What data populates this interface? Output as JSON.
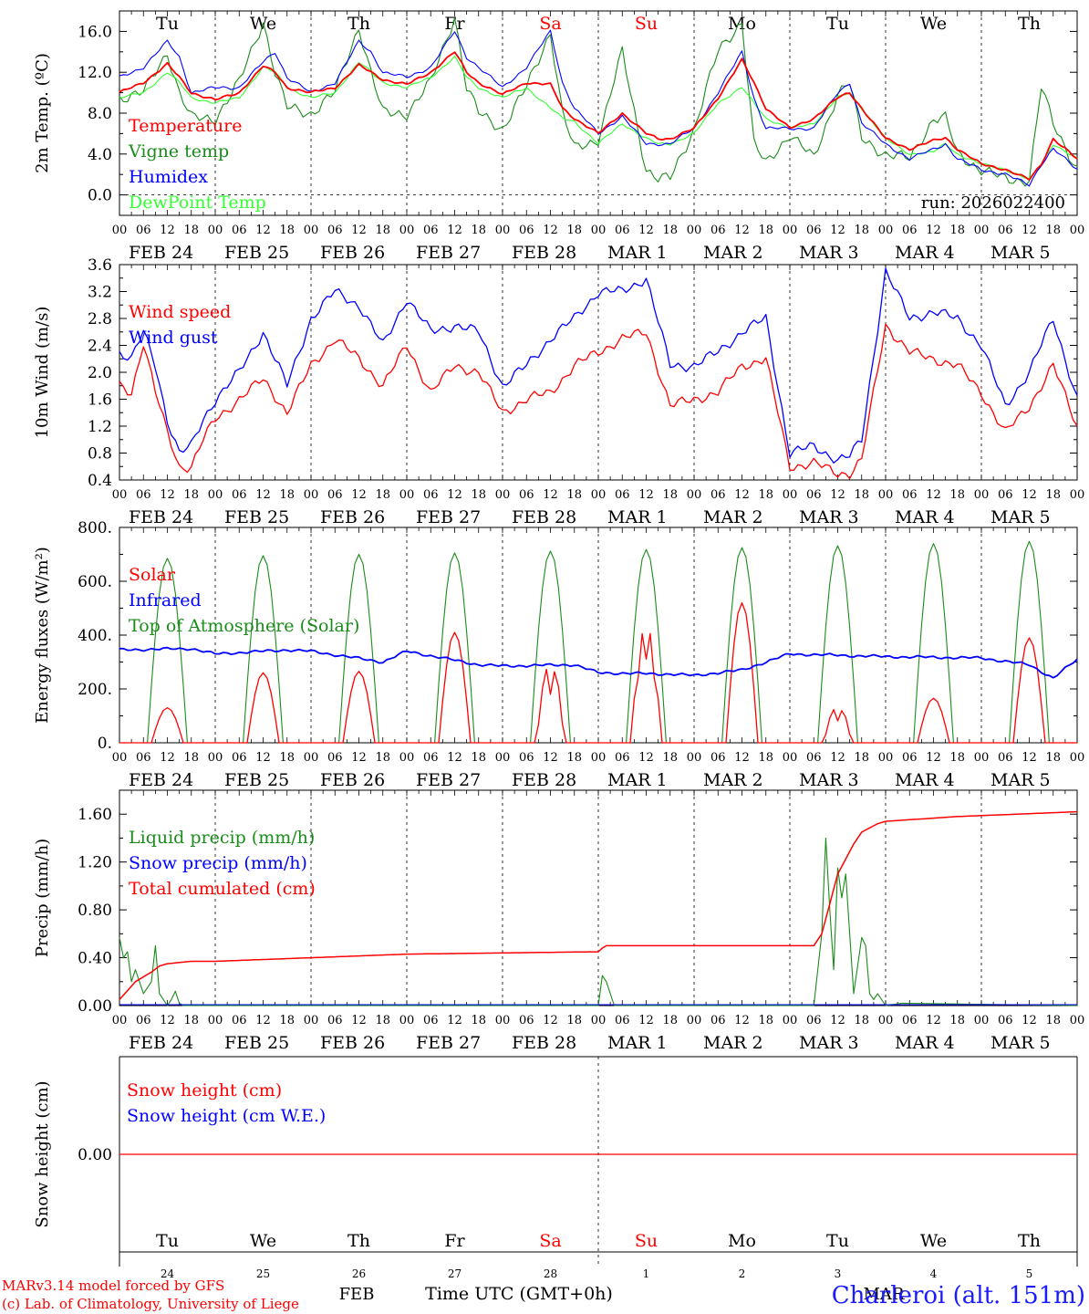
{
  "chart_data": [
    {
      "type": "line",
      "ylabel": "2m Temp. (ºC)",
      "ylim": [
        -2.0,
        18.0
      ],
      "ytick_labels": [
        "0.0",
        "4.0",
        "8.0",
        "12.0",
        "16.0"
      ],
      "run_label": "run: 2026022400",
      "day_labels": [
        "Tu",
        "We",
        "Th",
        "Fr",
        "Sa",
        "Su",
        "Mo",
        "Tu",
        "We",
        "Th"
      ],
      "date_labels": [
        "FEB 24",
        "FEB 25",
        "FEB 26",
        "FEB 27",
        "FEB 28",
        "MAR  1",
        "MAR  2",
        "MAR  3",
        "MAR  4",
        "MAR  5"
      ],
      "x_hours": [
        0,
        6,
        12,
        15,
        18,
        24,
        30,
        36,
        39,
        42,
        48,
        54,
        60,
        63,
        66,
        72,
        78,
        84,
        87,
        90,
        96,
        102,
        108,
        111,
        114,
        120,
        126,
        132,
        135,
        138,
        144,
        150,
        156,
        159,
        162,
        168,
        174,
        180,
        183,
        186,
        192,
        198,
        204,
        207,
        210,
        216,
        222,
        228,
        231,
        234,
        240
      ],
      "series": [
        {
          "name": "Temperature",
          "color": "#ff0000",
          "values": [
            10.0,
            11.0,
            12.8,
            11.5,
            10.0,
            9.3,
            10.0,
            12.6,
            12.0,
            10.5,
            10.0,
            10.5,
            12.7,
            12.0,
            11.3,
            10.8,
            12.0,
            14.0,
            12.0,
            11.0,
            9.8,
            11.0,
            10.8,
            8.5,
            7.5,
            6.0,
            8.0,
            6.0,
            5.5,
            5.5,
            6.5,
            9.5,
            13.2,
            11.0,
            8.5,
            6.5,
            7.5,
            9.5,
            10.0,
            8.5,
            5.5,
            4.5,
            5.3,
            5.6,
            4.5,
            3.0,
            2.5,
            1.5,
            3.0,
            5.5,
            3.5
          ]
        },
        {
          "name": "Vigne temp",
          "color": "#1a8c1a",
          "values": [
            9.5,
            10.0,
            14.0,
            10.0,
            7.5,
            7.5,
            11.0,
            17.0,
            12.0,
            8.5,
            8.0,
            10.0,
            16.5,
            12.0,
            8.0,
            8.0,
            11.0,
            17.5,
            10.5,
            8.0,
            6.5,
            10.5,
            16.0,
            8.0,
            4.5,
            5.5,
            14.0,
            2.5,
            1.5,
            1.6,
            6.5,
            14.0,
            17.0,
            5.0,
            3.0,
            6.0,
            3.5,
            10.0,
            11.0,
            5.5,
            4.0,
            3.5,
            7.5,
            7.5,
            4.0,
            2.5,
            1.5,
            1.5,
            10.5,
            7.0,
            2.5
          ]
        },
        {
          "name": "Humidex",
          "color": "#0000ff",
          "values": [
            11.5,
            12.5,
            15.0,
            13.5,
            10.0,
            10.5,
            10.5,
            13.0,
            14.0,
            11.5,
            10.0,
            11.0,
            15.0,
            14.0,
            12.0,
            11.5,
            12.5,
            16.0,
            13.5,
            12.5,
            10.5,
            12.5,
            16.0,
            11.0,
            8.5,
            6.0,
            7.7,
            5.0,
            5.0,
            5.0,
            6.5,
            10.0,
            14.0,
            9.5,
            6.5,
            6.5,
            6.5,
            10.0,
            11.0,
            7.0,
            5.0,
            3.5,
            4.5,
            5.0,
            3.5,
            2.5,
            2.0,
            1.0,
            3.0,
            4.5,
            2.5
          ]
        },
        {
          "name": "DewPoint Temp",
          "color": "#33ff33",
          "values": [
            9.5,
            10.0,
            12.0,
            11.0,
            9.5,
            9.0,
            9.5,
            12.5,
            12.0,
            10.5,
            9.5,
            10.0,
            13.0,
            12.0,
            11.0,
            10.5,
            11.5,
            13.5,
            11.5,
            10.5,
            9.5,
            10.5,
            8.5,
            7.5,
            7.2,
            5.0,
            7.0,
            5.5,
            5.0,
            5.0,
            6.0,
            9.0,
            10.5,
            9.0,
            7.5,
            6.5,
            7.0,
            9.5,
            10.0,
            8.5,
            5.5,
            4.0,
            4.2,
            5.0,
            4.0,
            3.0,
            2.5,
            1.5,
            3.0,
            5.0,
            3.5
          ]
        }
      ]
    },
    {
      "type": "line",
      "ylabel": "10m Wind (m/s)",
      "ylim": [
        0.4,
        3.6
      ],
      "ytick_labels": [
        "0.4",
        "0.8",
        "1.2",
        "1.6",
        "2.0",
        "2.4",
        "2.8",
        "3.2",
        "3.6"
      ],
      "date_labels": [
        "FEB 24",
        "FEB 25",
        "FEB 26",
        "FEB 27",
        "FEB 28",
        "MAR  1",
        "MAR  2",
        "MAR  3",
        "MAR  4",
        "MAR  5"
      ],
      "x_hours": [
        0,
        3,
        6,
        9,
        12,
        15,
        18,
        21,
        24,
        30,
        36,
        42,
        48,
        54,
        60,
        66,
        72,
        78,
        84,
        90,
        96,
        102,
        108,
        114,
        120,
        126,
        132,
        138,
        144,
        150,
        156,
        162,
        168,
        174,
        180,
        183,
        186,
        192,
        198,
        204,
        210,
        216,
        222,
        228,
        234,
        240
      ],
      "series": [
        {
          "name": "Wind speed",
          "color": "#ff0000",
          "values": [
            1.8,
            1.7,
            2.45,
            1.7,
            1.1,
            0.6,
            0.6,
            1.0,
            1.3,
            1.6,
            1.9,
            1.4,
            2.1,
            2.5,
            2.2,
            1.8,
            2.4,
            1.7,
            2.1,
            2.0,
            1.4,
            1.6,
            1.7,
            2.1,
            2.3,
            2.5,
            2.6,
            1.5,
            1.6,
            1.7,
            2.1,
            2.2,
            0.6,
            0.65,
            0.5,
            0.5,
            0.7,
            2.7,
            2.3,
            2.2,
            2.1,
            1.7,
            1.1,
            1.5,
            2.1,
            1.2
          ]
        },
        {
          "name": "Wind gust",
          "color": "#0000ff",
          "values": [
            2.3,
            2.2,
            2.6,
            2.1,
            1.3,
            0.8,
            0.9,
            1.3,
            1.6,
            2.0,
            2.6,
            1.8,
            2.8,
            3.2,
            3.0,
            2.4,
            3.1,
            2.6,
            2.7,
            2.6,
            1.8,
            2.1,
            2.5,
            2.8,
            3.2,
            3.2,
            3.4,
            2.1,
            2.1,
            2.3,
            2.6,
            2.8,
            0.8,
            0.9,
            0.7,
            0.75,
            1.0,
            3.5,
            2.8,
            2.9,
            2.8,
            2.4,
            1.5,
            2.0,
            2.8,
            1.6
          ]
        }
      ]
    },
    {
      "type": "line",
      "ylabel": "Energy fluxes (W/m²)",
      "ylim": [
        0,
        800
      ],
      "ytick_labels": [
        "0.",
        "200.",
        "400.",
        "600.",
        "800."
      ],
      "date_labels": [
        "FEB 24",
        "FEB 25",
        "FEB 26",
        "FEB 27",
        "FEB 28",
        "MAR  1",
        "MAR  2",
        "MAR  3",
        "MAR  4",
        "MAR  5"
      ],
      "series": [
        {
          "name": "Solar",
          "color": "#ff0000",
          "daily_peak": [
            130,
            260,
            265,
            410,
            310,
            440,
            520,
            140,
            165,
            390
          ]
        },
        {
          "name": "Infrared",
          "color": "#0000ff",
          "x_hours": [
            0,
            18,
            24,
            42,
            48,
            66,
            72,
            90,
            96,
            114,
            120,
            138,
            144,
            156,
            168,
            192,
            216,
            228,
            234,
            240
          ],
          "values": [
            345,
            350,
            330,
            345,
            340,
            300,
            340,
            290,
            285,
            290,
            260,
            255,
            250,
            270,
            330,
            320,
            315,
            290,
            240,
            310
          ]
        },
        {
          "name": "Top of Atmosphere (Solar)",
          "color": "#1a8c1a",
          "daily_peak": [
            685,
            695,
            700,
            705,
            712,
            718,
            725,
            732,
            740,
            748
          ]
        }
      ]
    },
    {
      "type": "line",
      "ylabel": "Precip (mm/h)",
      "ylim": [
        0.0,
        1.8
      ],
      "ytick_labels": [
        "0.00",
        "0.40",
        "0.80",
        "1.20",
        "1.60"
      ],
      "date_labels": [
        "FEB 24",
        "FEB 25",
        "FEB 26",
        "FEB 27",
        "FEB 28",
        "MAR  1",
        "MAR  2",
        "MAR  3",
        "MAR  4",
        "MAR  5"
      ],
      "series": [
        {
          "name": "Liquid precip (mm/h)",
          "color": "#1a8c1a",
          "x_hours": [
            0,
            1,
            2,
            3,
            4,
            6,
            8,
            9,
            10,
            12,
            13,
            14,
            15,
            16,
            24,
            120,
            121,
            122,
            124,
            174,
            176,
            177,
            178,
            179,
            180,
            181,
            182,
            183,
            184,
            186,
            187,
            188,
            189,
            190,
            192,
            196,
            240
          ],
          "values": [
            0.57,
            0.4,
            0.45,
            0.2,
            0.3,
            0.1,
            0.2,
            0.5,
            0.1,
            0.0,
            0.05,
            0.12,
            0.02,
            0.0,
            0.0,
            0.0,
            0.25,
            0.2,
            0.0,
            0.0,
            0.6,
            1.4,
            0.8,
            0.3,
            1.15,
            0.9,
            1.1,
            0.6,
            0.1,
            0.57,
            0.5,
            0.1,
            0.05,
            0.1,
            0.0,
            0.02,
            0.0
          ]
        },
        {
          "name": "Snow precip (mm/h)",
          "color": "#0000ff",
          "x_hours": [
            0,
            240
          ],
          "values": [
            0.0,
            0.0
          ]
        },
        {
          "name": "Total cumulated (cm)",
          "color": "#ff0000",
          "x_hours": [
            0,
            4,
            8,
            10,
            12,
            18,
            24,
            48,
            72,
            96,
            120,
            121,
            122,
            174,
            176,
            178,
            180,
            184,
            186,
            190,
            192,
            210,
            240
          ],
          "values": [
            0.05,
            0.2,
            0.28,
            0.33,
            0.35,
            0.37,
            0.37,
            0.4,
            0.43,
            0.44,
            0.45,
            0.48,
            0.5,
            0.5,
            0.6,
            0.85,
            1.1,
            1.35,
            1.45,
            1.52,
            1.54,
            1.58,
            1.62
          ]
        }
      ]
    },
    {
      "type": "line",
      "ylabel": "Snow height (cm)",
      "ytick_labels": [
        "0.00"
      ],
      "series": [
        {
          "name": "Snow height (cm)",
          "color": "#ff0000",
          "values": [
            0.0,
            0.0
          ]
        },
        {
          "name": "Snow height (cm W.E.)",
          "color": "#0000ff",
          "values": []
        }
      ],
      "day_labels": [
        "Tu",
        "We",
        "Th",
        "Fr",
        "Sa",
        "Su",
        "Mo",
        "Tu",
        "We",
        "Th"
      ],
      "day_numbers": [
        "24",
        "25",
        "26",
        "27",
        "28",
        "1",
        "2",
        "3",
        "4",
        "5"
      ],
      "month_labels": [
        "FEB",
        "MAR"
      ],
      "xlabel": "Time UTC (GMT+0h)"
    }
  ],
  "hour_tick_labels": [
    "00",
    "06",
    "12",
    "18"
  ],
  "weekend_color": "#ff0000",
  "footer": {
    "credit_line1": "MARv3.14 model forced by GFS",
    "credit_line2": "(c) Lab. of Climatology, University of Liege",
    "station": "Charleroi (alt. 151m)"
  }
}
